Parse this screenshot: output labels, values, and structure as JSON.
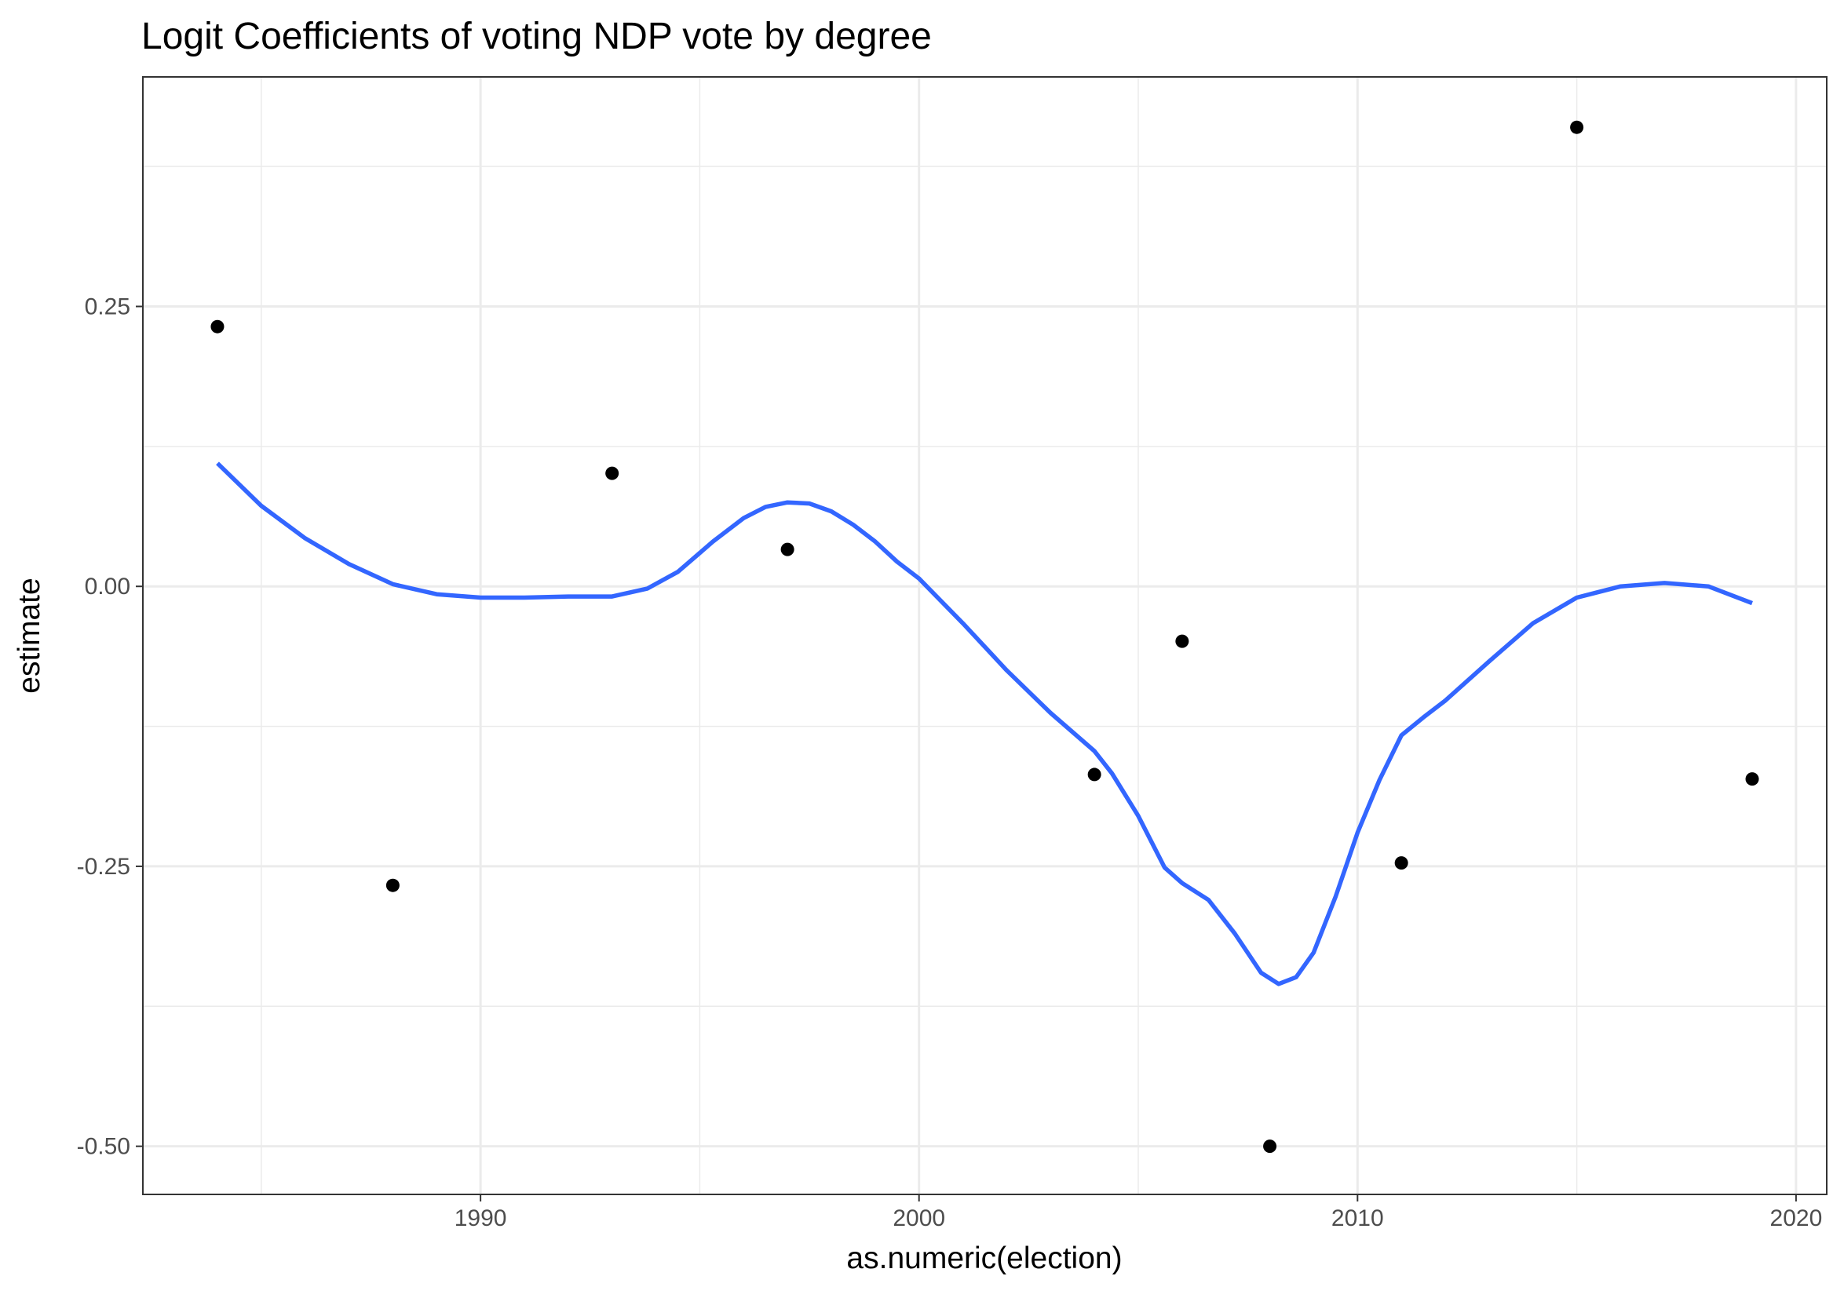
{
  "chart_data": {
    "type": "scatter",
    "title": "Logit Coefficients of voting NDP vote by degree",
    "xlabel": "as.numeric(election)",
    "ylabel": "estimate",
    "xlim": [
      1982.3,
      2020.7
    ],
    "ylim": [
      -0.543,
      0.455
    ],
    "x_ticks": [
      1990,
      2000,
      2010,
      2020
    ],
    "x_tick_labels": [
      "1990",
      "2000",
      "2010",
      "2020"
    ],
    "x_minor": [
      1985,
      1995,
      2005,
      2015
    ],
    "y_ticks": [
      0.25,
      0,
      -0.25,
      -0.5
    ],
    "y_tick_labels": [
      "0.25",
      "0.00",
      "-0.25",
      "-0.50"
    ],
    "y_minor": [
      0.375,
      0.125,
      -0.125,
      -0.375
    ],
    "grid": true,
    "legend": "none",
    "colors": {
      "points": "#000000",
      "smooth": "#3366FF",
      "grid": "#ebebeb"
    },
    "series": [
      {
        "kind": "points",
        "x": [
          1984,
          1988,
          1993,
          1997,
          2004,
          2006,
          2008,
          2011,
          2015,
          2019
        ],
        "y": [
          0.232,
          -0.267,
          0.101,
          0.033,
          -0.168,
          -0.049,
          -0.5,
          -0.247,
          0.41,
          -0.172
        ]
      },
      {
        "kind": "smooth",
        "x": [
          1984,
          1985,
          1986,
          1987,
          1988,
          1989,
          1990,
          1991,
          1992,
          1993,
          1993.8,
          1994.5,
          1995.3,
          1996,
          1996.5,
          1997,
          1997.5,
          1998,
          1998.5,
          1999,
          1999.5,
          2000,
          2001,
          2002,
          2003,
          2004,
          2004.4,
          2005,
          2005.6,
          2006,
          2006.6,
          2007.2,
          2007.8,
          2008.2,
          2008.6,
          2009,
          2009.5,
          2010,
          2010.5,
          2011,
          2011.5,
          2012,
          2013,
          2014,
          2015,
          2016,
          2017,
          2018,
          2019
        ],
        "y": [
          0.11,
          0.072,
          0.043,
          0.02,
          0.002,
          -0.007,
          -0.01,
          -0.01,
          -0.009,
          -0.009,
          -0.002,
          0.013,
          0.04,
          0.061,
          0.071,
          0.075,
          0.074,
          0.067,
          0.055,
          0.04,
          0.022,
          0.007,
          -0.033,
          -0.075,
          -0.113,
          -0.147,
          -0.167,
          -0.205,
          -0.251,
          -0.265,
          -0.28,
          -0.31,
          -0.345,
          -0.355,
          -0.349,
          -0.327,
          -0.277,
          -0.22,
          -0.173,
          -0.133,
          -0.117,
          -0.102,
          -0.067,
          -0.033,
          -0.01,
          0,
          0.003,
          0,
          -0.015
        ]
      }
    ]
  }
}
